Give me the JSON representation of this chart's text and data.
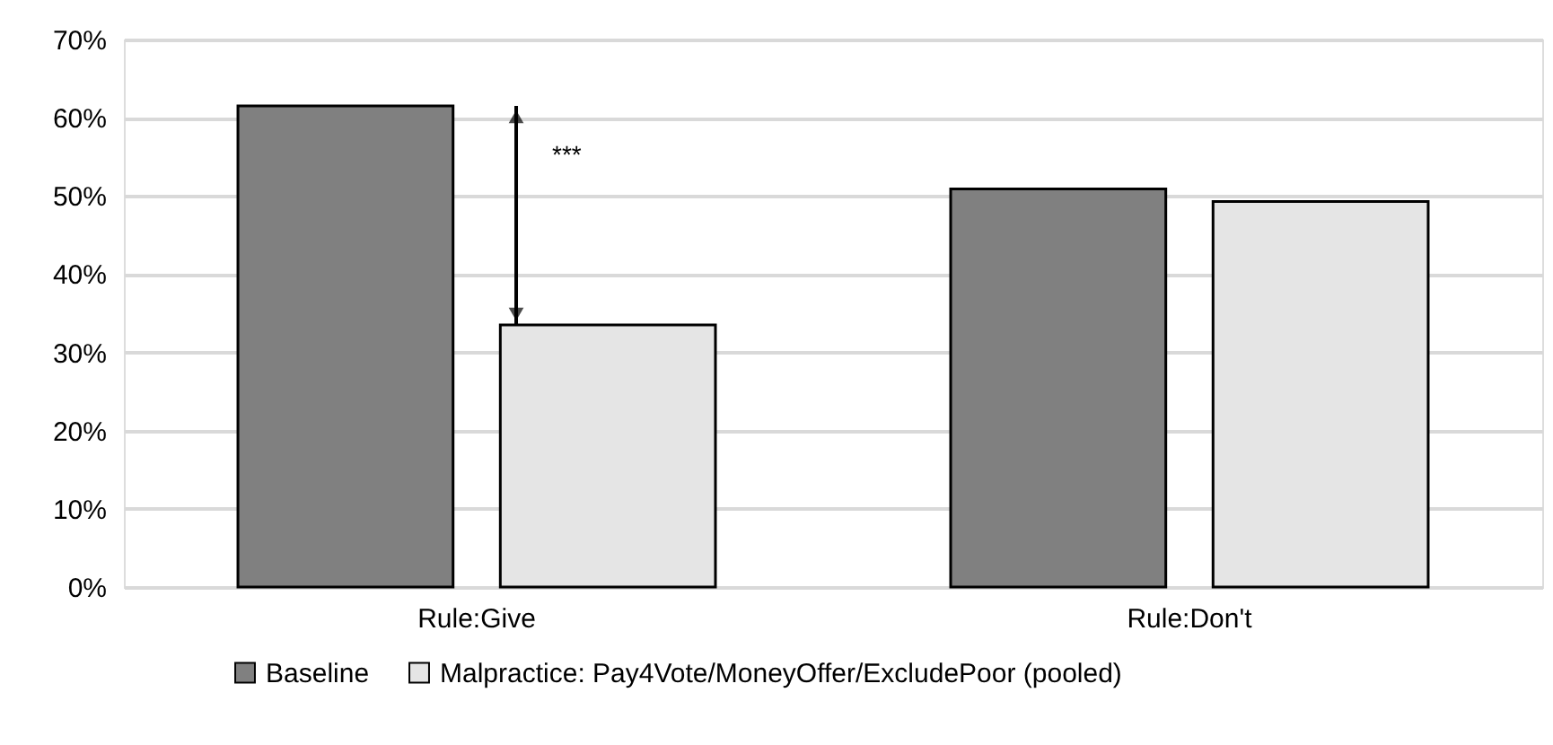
{
  "chart_data": {
    "type": "bar",
    "categories": [
      "Rule:Give",
      "Rule:Don't"
    ],
    "series": [
      {
        "name": "Baseline",
        "color": "#808080",
        "values": [
          61.5,
          50.9
        ]
      },
      {
        "name": "Malpractice: Pay4Vote/MoneyOffer/ExcludePoor (pooled)",
        "color": "#e5e5e5",
        "values": [
          33.5,
          49.3
        ]
      }
    ],
    "ylim": [
      0,
      70
    ],
    "yticks": [
      {
        "value": 0,
        "label": "0%"
      },
      {
        "value": 10,
        "label": "10%"
      },
      {
        "value": 20,
        "label": "20%"
      },
      {
        "value": 30,
        "label": "30%"
      },
      {
        "value": 40,
        "label": "40%"
      },
      {
        "value": 50,
        "label": "50%"
      },
      {
        "value": 60,
        "label": "60%"
      },
      {
        "value": 70,
        "label": "70%"
      }
    ],
    "grid": "y",
    "legend": "bottom",
    "annotations": [
      "***"
    ]
  }
}
